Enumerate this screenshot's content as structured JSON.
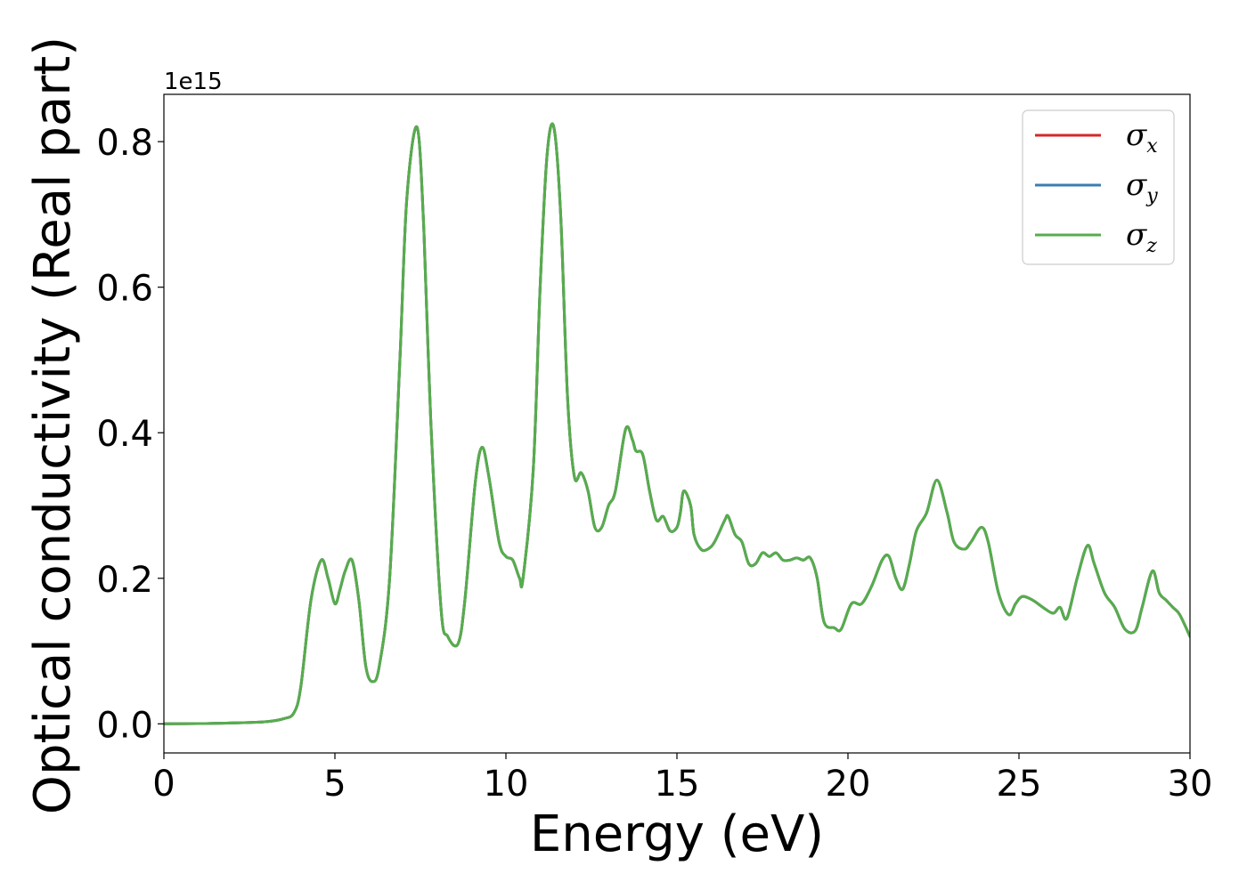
{
  "chart_data": {
    "type": "line",
    "title": "",
    "xlabel": "Energy (eV)",
    "ylabel": "Optical conductivity (Real part)",
    "y_offset_label": "1e15",
    "xlim": [
      0,
      30
    ],
    "ylim": [
      -0.04,
      0.865
    ],
    "x_ticks": [
      0,
      5,
      10,
      15,
      20,
      25,
      30
    ],
    "x_tick_labels": [
      "0",
      "5",
      "10",
      "15",
      "20",
      "25",
      "30"
    ],
    "y_ticks": [
      0.0,
      0.2,
      0.4,
      0.6,
      0.8
    ],
    "y_tick_labels": [
      "0.0",
      "0.2",
      "0.4",
      "0.6",
      "0.8"
    ],
    "grid": false,
    "legend_position": "top-right",
    "x": [
      0,
      1,
      2,
      3,
      3.5,
      3.8,
      4.0,
      4.3,
      4.6,
      4.8,
      5.0,
      5.15,
      5.3,
      5.5,
      5.7,
      5.9,
      6.1,
      6.3,
      6.6,
      6.9,
      7.1,
      7.4,
      7.6,
      7.8,
      8.1,
      8.3,
      8.6,
      8.8,
      9.1,
      9.3,
      9.5,
      9.8,
      10.0,
      10.2,
      10.4,
      10.5,
      10.8,
      11.0,
      11.2,
      11.4,
      11.6,
      11.8,
      12.0,
      12.2,
      12.4,
      12.6,
      12.8,
      13.0,
      13.2,
      13.5,
      13.7,
      13.8,
      14.0,
      14.2,
      14.4,
      14.6,
      14.8,
      15.0,
      15.1,
      15.2,
      15.4,
      15.5,
      15.7,
      15.9,
      16.1,
      16.4,
      16.5,
      16.7,
      16.9,
      17.1,
      17.3,
      17.5,
      17.7,
      17.9,
      18.1,
      18.3,
      18.5,
      18.7,
      18.9,
      19.1,
      19.3,
      19.6,
      19.8,
      20.1,
      20.4,
      20.7,
      21.0,
      21.2,
      21.4,
      21.6,
      21.8,
      22.0,
      22.3,
      22.6,
      22.9,
      23.1,
      23.4,
      23.6,
      23.9,
      24.1,
      24.4,
      24.7,
      24.9,
      25.1,
      25.4,
      25.7,
      26.0,
      26.2,
      26.4,
      26.7,
      27.0,
      27.2,
      27.5,
      27.8,
      28.1,
      28.4,
      28.6,
      28.9,
      29.1,
      29.3,
      29.5,
      29.7,
      30.0
    ],
    "series": [
      {
        "name": "x",
        "color": "#d62728",
        "values": [
          0,
          0.0003,
          0.0012,
          0.003,
          0.007,
          0.015,
          0.05,
          0.17,
          0.225,
          0.2,
          0.165,
          0.185,
          0.21,
          0.225,
          0.17,
          0.08,
          0.058,
          0.08,
          0.2,
          0.5,
          0.72,
          0.82,
          0.68,
          0.42,
          0.16,
          0.12,
          0.11,
          0.17,
          0.33,
          0.38,
          0.34,
          0.25,
          0.23,
          0.225,
          0.2,
          0.2,
          0.35,
          0.6,
          0.78,
          0.82,
          0.7,
          0.45,
          0.34,
          0.345,
          0.32,
          0.27,
          0.27,
          0.3,
          0.32,
          0.405,
          0.39,
          0.375,
          0.37,
          0.32,
          0.28,
          0.285,
          0.265,
          0.27,
          0.29,
          0.32,
          0.3,
          0.26,
          0.24,
          0.24,
          0.25,
          0.28,
          0.285,
          0.26,
          0.25,
          0.22,
          0.22,
          0.235,
          0.23,
          0.235,
          0.225,
          0.225,
          0.228,
          0.225,
          0.228,
          0.2,
          0.14,
          0.132,
          0.13,
          0.165,
          0.165,
          0.19,
          0.225,
          0.23,
          0.2,
          0.185,
          0.22,
          0.265,
          0.29,
          0.335,
          0.29,
          0.25,
          0.24,
          0.25,
          0.27,
          0.25,
          0.18,
          0.15,
          0.165,
          0.175,
          0.17,
          0.16,
          0.152,
          0.16,
          0.145,
          0.2,
          0.245,
          0.22,
          0.18,
          0.16,
          0.13,
          0.128,
          0.16,
          0.21,
          0.18,
          0.17,
          0.16,
          0.15,
          0.12
        ]
      },
      {
        "name": "y",
        "color": "#3a7db5",
        "values": [
          0,
          0.0003,
          0.0012,
          0.003,
          0.007,
          0.015,
          0.05,
          0.17,
          0.225,
          0.2,
          0.165,
          0.185,
          0.21,
          0.225,
          0.17,
          0.08,
          0.058,
          0.08,
          0.2,
          0.5,
          0.72,
          0.82,
          0.68,
          0.42,
          0.16,
          0.12,
          0.11,
          0.17,
          0.33,
          0.38,
          0.34,
          0.25,
          0.23,
          0.225,
          0.2,
          0.2,
          0.35,
          0.6,
          0.78,
          0.82,
          0.7,
          0.45,
          0.34,
          0.345,
          0.32,
          0.27,
          0.27,
          0.3,
          0.32,
          0.405,
          0.39,
          0.375,
          0.37,
          0.32,
          0.28,
          0.285,
          0.265,
          0.27,
          0.29,
          0.32,
          0.3,
          0.26,
          0.24,
          0.24,
          0.25,
          0.28,
          0.285,
          0.26,
          0.25,
          0.22,
          0.22,
          0.235,
          0.23,
          0.235,
          0.225,
          0.225,
          0.228,
          0.225,
          0.228,
          0.2,
          0.14,
          0.132,
          0.13,
          0.165,
          0.165,
          0.19,
          0.225,
          0.23,
          0.2,
          0.185,
          0.22,
          0.265,
          0.29,
          0.335,
          0.29,
          0.25,
          0.24,
          0.25,
          0.27,
          0.25,
          0.18,
          0.15,
          0.165,
          0.175,
          0.17,
          0.16,
          0.152,
          0.16,
          0.145,
          0.2,
          0.245,
          0.22,
          0.18,
          0.16,
          0.13,
          0.128,
          0.16,
          0.21,
          0.18,
          0.17,
          0.16,
          0.15,
          0.12
        ]
      },
      {
        "name": "z",
        "color": "#56ad4b",
        "values": [
          0,
          0.0003,
          0.0012,
          0.003,
          0.007,
          0.015,
          0.05,
          0.17,
          0.225,
          0.2,
          0.165,
          0.185,
          0.21,
          0.225,
          0.17,
          0.08,
          0.058,
          0.08,
          0.2,
          0.5,
          0.72,
          0.82,
          0.68,
          0.42,
          0.16,
          0.12,
          0.11,
          0.17,
          0.33,
          0.38,
          0.34,
          0.25,
          0.23,
          0.225,
          0.2,
          0.2,
          0.35,
          0.6,
          0.78,
          0.82,
          0.7,
          0.45,
          0.34,
          0.345,
          0.32,
          0.27,
          0.27,
          0.3,
          0.32,
          0.405,
          0.39,
          0.375,
          0.37,
          0.32,
          0.28,
          0.285,
          0.265,
          0.27,
          0.29,
          0.32,
          0.3,
          0.26,
          0.24,
          0.24,
          0.25,
          0.28,
          0.285,
          0.26,
          0.25,
          0.22,
          0.22,
          0.235,
          0.23,
          0.235,
          0.225,
          0.225,
          0.228,
          0.225,
          0.228,
          0.2,
          0.14,
          0.132,
          0.13,
          0.165,
          0.165,
          0.19,
          0.225,
          0.23,
          0.2,
          0.185,
          0.22,
          0.265,
          0.29,
          0.335,
          0.29,
          0.25,
          0.24,
          0.25,
          0.27,
          0.25,
          0.18,
          0.15,
          0.165,
          0.175,
          0.17,
          0.16,
          0.152,
          0.16,
          0.145,
          0.2,
          0.245,
          0.22,
          0.18,
          0.16,
          0.13,
          0.128,
          0.16,
          0.21,
          0.18,
          0.17,
          0.16,
          0.15,
          0.12
        ]
      }
    ]
  }
}
